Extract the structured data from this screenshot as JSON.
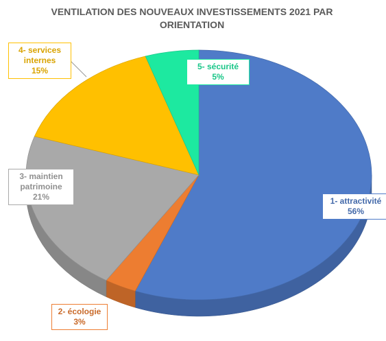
{
  "chart_data": {
    "type": "pie",
    "title": "VENTILATION DES NOUVEAUX INVESTISSEMENTS 2021 PAR ORIENTATION",
    "categories": [
      "1- attractivité",
      "2- écologie",
      "3- maintien patrimoine",
      "4- services internes",
      "5- sécurité"
    ],
    "values": [
      56,
      3,
      21,
      15,
      5
    ],
    "value_labels": [
      "56%",
      "3%",
      "21%",
      "15%",
      "5%"
    ],
    "colors": [
      "#4f7bc8",
      "#ed7d31",
      "#a9a9a9",
      "#ffc000",
      "#1de9a0"
    ]
  }
}
